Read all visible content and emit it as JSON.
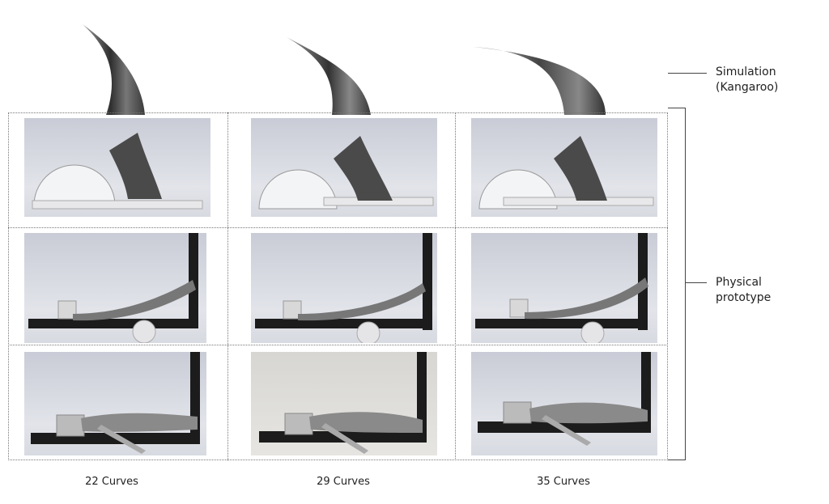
{
  "labels": {
    "simulation": "Simulation\n(Kangaroo)",
    "physical": "Physical\nprototype"
  },
  "columns": [
    {
      "caption": "22 Curves"
    },
    {
      "caption": "29 Curves"
    },
    {
      "caption": "35 Curves"
    }
  ],
  "colors": {
    "strip_dark": "#3a3a3a",
    "strip_light": "#9a9a9a",
    "ruler": "#1c1c1c",
    "background": "#ffffff"
  }
}
